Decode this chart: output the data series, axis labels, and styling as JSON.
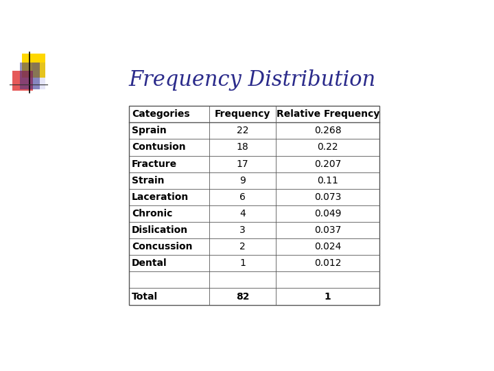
{
  "title": "Frequency Distribution",
  "title_color": "#2B2B8B",
  "title_fontsize": 22,
  "col_headers": [
    "Categories",
    "Frequency",
    "Relative Frequency"
  ],
  "rows": [
    [
      "Sprain",
      "22",
      "0.268"
    ],
    [
      "Contusion",
      "18",
      "0.22"
    ],
    [
      "Fracture",
      "17",
      "0.207"
    ],
    [
      "Strain",
      "9",
      "0.11"
    ],
    [
      "Laceration",
      "6",
      "0.073"
    ],
    [
      "Chronic",
      "4",
      "0.049"
    ],
    [
      "Dislication",
      "3",
      "0.037"
    ],
    [
      "Concussion",
      "2",
      "0.024"
    ],
    [
      "Dental",
      "1",
      "0.012"
    ]
  ],
  "empty_row": [
    "",
    "",
    ""
  ],
  "total_row": [
    "Total",
    "82",
    "1"
  ],
  "background_color": "#ffffff",
  "table_text_color": "#000000",
  "font_size": 10,
  "logo_colors": {
    "yellow": "#FFD700",
    "red": "#DD2222",
    "blue": "#2B2B8B",
    "blue_light": "#5555CC"
  }
}
